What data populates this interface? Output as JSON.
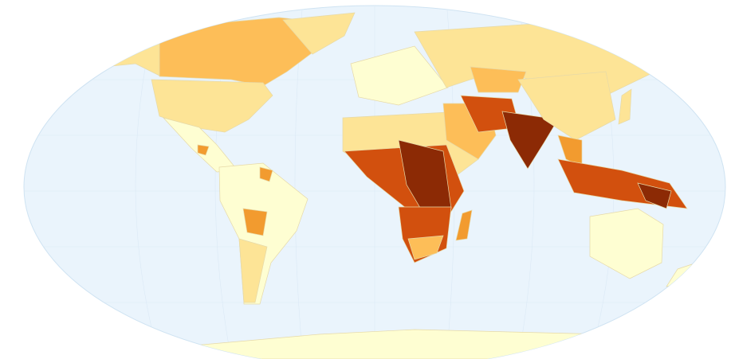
{
  "map": {
    "colors": [
      "#fefed2",
      "#fde496",
      "#fdbe58",
      "#f29b2f",
      "#d2500e",
      "#8c2a05"
    ]
  }
}
